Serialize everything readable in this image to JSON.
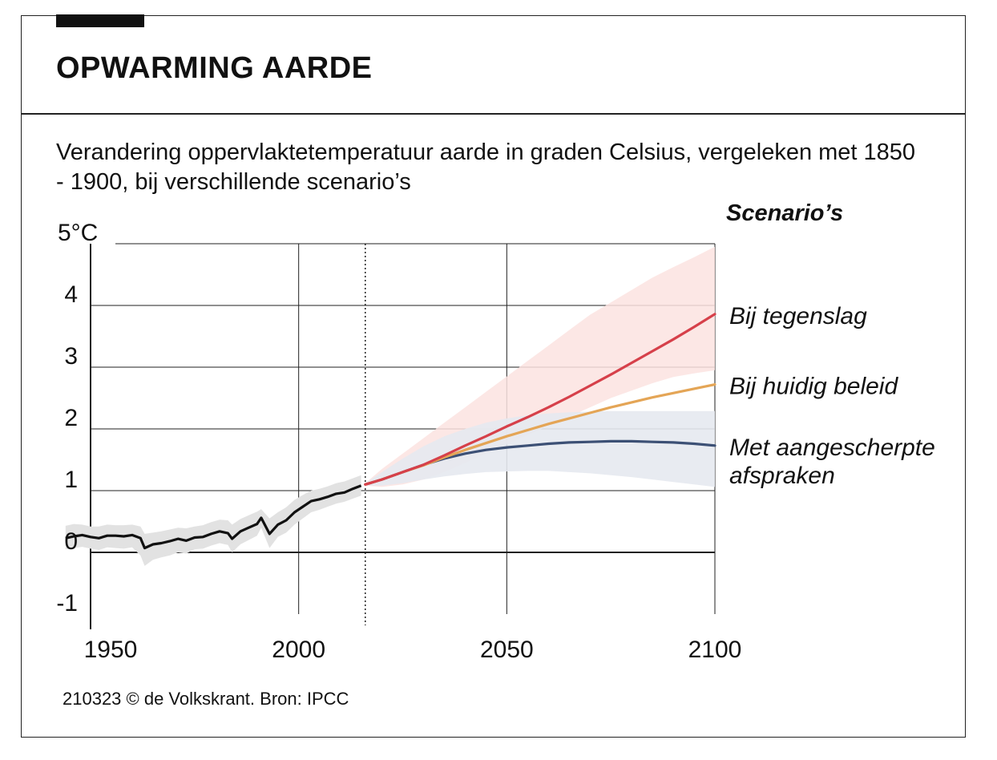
{
  "header": {
    "title": "OPWARMING AARDE",
    "subtitle": "Verandering oppervlaktetemperatuur aarde in graden Celsius, vergeleken met 1850 - 1900, bij verschillende scenario’s"
  },
  "legend": {
    "title": "Scenario’s"
  },
  "footer": {
    "credit": "210323 © de Volkskrant. Bron: IPCC"
  },
  "colors": {
    "historical": "#111111",
    "historical_band": "#e2e2e2",
    "tegenslag": "#d6404a",
    "tegenslag_band": "#fbe3e1",
    "huidig": "#e4a556",
    "aangescherpt": "#3c5075",
    "aangescherpt_band": "#e6e9ef",
    "grid": "#222222"
  },
  "chart_data": {
    "type": "line",
    "xlim": [
      1945,
      2100
    ],
    "ylim": [
      -1,
      5
    ],
    "unit": "°C",
    "x_ticks": [
      1950,
      2000,
      2050,
      2100
    ],
    "y_ticks": [
      -1,
      0,
      1,
      2,
      3,
      4,
      5
    ],
    "y_tick_labels": [
      "-1",
      "0",
      "1",
      "2",
      "3",
      "4",
      "5°C"
    ],
    "marker_year": 2016,
    "historical": {
      "x": [
        1944,
        1946,
        1948,
        1950,
        1952,
        1954,
        1956,
        1958,
        1960,
        1962,
        1963,
        1965,
        1967,
        1969,
        1971,
        1973,
        1975,
        1977,
        1979,
        1981,
        1983,
        1984,
        1986,
        1988,
        1990,
        1991,
        1993,
        1995,
        1997,
        1999,
        2001,
        2003,
        2005,
        2007,
        2009,
        2011,
        2013,
        2015
      ],
      "y": [
        0.23,
        0.26,
        0.28,
        0.25,
        0.23,
        0.27,
        0.27,
        0.26,
        0.28,
        0.23,
        0.07,
        0.13,
        0.15,
        0.18,
        0.22,
        0.19,
        0.24,
        0.25,
        0.3,
        0.34,
        0.31,
        0.22,
        0.34,
        0.4,
        0.46,
        0.56,
        0.3,
        0.45,
        0.52,
        0.65,
        0.74,
        0.83,
        0.86,
        0.9,
        0.95,
        0.97,
        1.03,
        1.08
      ],
      "band_upper": [
        0.43,
        0.46,
        0.45,
        0.42,
        0.42,
        0.45,
        0.44,
        0.44,
        0.45,
        0.42,
        0.3,
        0.32,
        0.34,
        0.37,
        0.4,
        0.39,
        0.42,
        0.44,
        0.49,
        0.53,
        0.52,
        0.45,
        0.54,
        0.6,
        0.66,
        0.7,
        0.55,
        0.65,
        0.73,
        0.85,
        0.93,
        1.0,
        1.03,
        1.07,
        1.12,
        1.15,
        1.2,
        1.25
      ],
      "band_lower": [
        0.05,
        0.07,
        0.09,
        0.06,
        0.04,
        0.08,
        0.07,
        0.06,
        0.08,
        -0.05,
        -0.22,
        -0.12,
        -0.08,
        -0.05,
        0.0,
        -0.02,
        0.05,
        0.06,
        0.11,
        0.15,
        0.12,
        0.0,
        0.13,
        0.2,
        0.27,
        0.4,
        0.07,
        0.25,
        0.32,
        0.45,
        0.55,
        0.65,
        0.69,
        0.74,
        0.79,
        0.82,
        0.87,
        0.92
      ]
    },
    "series": [
      {
        "name": "Bij tegenslag",
        "x": [
          2016,
          2020,
          2025,
          2030,
          2035,
          2040,
          2045,
          2050,
          2055,
          2060,
          2065,
          2070,
          2075,
          2080,
          2085,
          2090,
          2095,
          2100
        ],
        "y": [
          1.1,
          1.18,
          1.3,
          1.42,
          1.57,
          1.73,
          1.88,
          2.04,
          2.19,
          2.35,
          2.52,
          2.7,
          2.88,
          3.07,
          3.26,
          3.45,
          3.65,
          3.86
        ],
        "band_upper": [
          1.12,
          1.35,
          1.6,
          1.85,
          2.1,
          2.35,
          2.6,
          2.85,
          3.1,
          3.35,
          3.6,
          3.85,
          4.05,
          4.25,
          4.45,
          4.62,
          4.78,
          4.95
        ],
        "band_lower": [
          1.08,
          1.06,
          1.1,
          1.18,
          1.3,
          1.45,
          1.6,
          1.75,
          1.9,
          2.05,
          2.2,
          2.35,
          2.5,
          2.62,
          2.74,
          2.84,
          2.9,
          2.95
        ]
      },
      {
        "name": "Bij huidig beleid",
        "x": [
          2016,
          2020,
          2025,
          2030,
          2035,
          2040,
          2045,
          2050,
          2055,
          2060,
          2065,
          2070,
          2075,
          2080,
          2085,
          2090,
          2095,
          2100
        ],
        "y": [
          1.1,
          1.18,
          1.3,
          1.41,
          1.54,
          1.66,
          1.77,
          1.88,
          1.98,
          2.08,
          2.17,
          2.26,
          2.35,
          2.43,
          2.51,
          2.58,
          2.65,
          2.72
        ]
      },
      {
        "name": "Met aangescherpte afspraken",
        "x": [
          2016,
          2020,
          2025,
          2030,
          2035,
          2040,
          2045,
          2050,
          2055,
          2060,
          2065,
          2070,
          2075,
          2080,
          2085,
          2090,
          2095,
          2100
        ],
        "y": [
          1.1,
          1.18,
          1.3,
          1.42,
          1.52,
          1.6,
          1.66,
          1.7,
          1.73,
          1.76,
          1.78,
          1.79,
          1.8,
          1.8,
          1.79,
          1.78,
          1.76,
          1.73
        ],
        "band_upper": [
          1.12,
          1.3,
          1.52,
          1.72,
          1.88,
          2.0,
          2.1,
          2.17,
          2.22,
          2.25,
          2.27,
          2.28,
          2.29,
          2.29,
          2.29,
          2.29,
          2.29,
          2.29
        ],
        "band_lower": [
          1.08,
          1.08,
          1.12,
          1.18,
          1.23,
          1.27,
          1.3,
          1.31,
          1.32,
          1.32,
          1.3,
          1.28,
          1.25,
          1.22,
          1.18,
          1.14,
          1.1,
          1.06
        ]
      }
    ],
    "series_labels": [
      {
        "series": "Bij tegenslag",
        "lines": [
          "Bij tegenslag"
        ]
      },
      {
        "series": "Bij huidig beleid",
        "lines": [
          "Bij huidig beleid"
        ]
      },
      {
        "series": "Met aangescherpte afspraken",
        "lines": [
          "Met aangescherpte",
          "afspraken"
        ]
      }
    ]
  }
}
